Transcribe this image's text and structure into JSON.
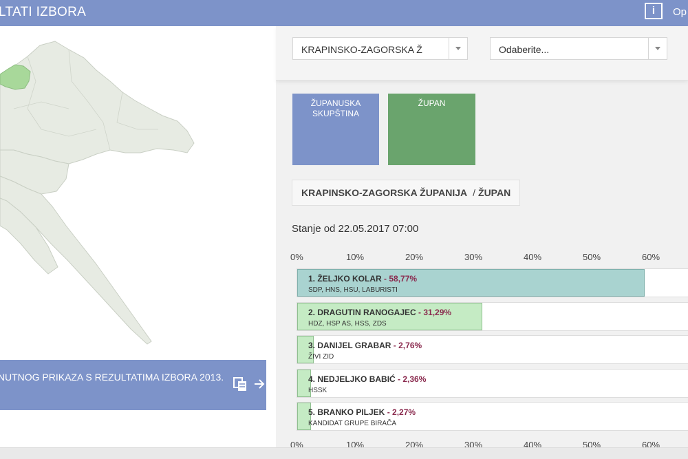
{
  "header": {
    "title": "LTATI IZBORA",
    "info_label": "i",
    "right_label": "Op"
  },
  "map": {
    "highlight_color": "#a8d89a",
    "region_color": "#e7ebe3"
  },
  "banner": {
    "text": "NUTNOG PRIKAZA S REZULTATIMA IZBORA 2013."
  },
  "filters": {
    "county": "KRAPINSKO-ZAGORSKA Ž",
    "municipality": "Odaberite..."
  },
  "tiles": [
    {
      "label": "ŽUPANUSKA SKUPŠTINA",
      "color": "#7d93c9"
    },
    {
      "label": "ŽUPAN",
      "color": "#6aa46d"
    }
  ],
  "breadcrumb": {
    "county": "KRAPINSKO-ZAGORSKA ŽUPANIJA",
    "separator": "/",
    "office": "ŽUPAN"
  },
  "status_text": "Stanje od 22.05.2017 07:00",
  "chart_data": {
    "type": "bar",
    "orientation": "horizontal",
    "axis_ticks": [
      "0%",
      "10%",
      "20%",
      "30%",
      "40%",
      "50%",
      "60%"
    ],
    "xlim": [
      0,
      66
    ],
    "candidates": [
      {
        "name": "1. ŽELJKO KOLAR",
        "pct_label": "58,77%",
        "value": 58.77,
        "party": "SDP, HNS, HSU, LABURISTI",
        "color": "#a9d3d0"
      },
      {
        "name": "2. DRAGUTIN RANOGAJEC",
        "pct_label": "31,29%",
        "value": 31.29,
        "party": "HDZ, HSP AS, HSS, ZDS",
        "color": "#c5ebc4"
      },
      {
        "name": "3. DANIJEL GRABAR",
        "pct_label": "2,76%",
        "value": 2.76,
        "party": "ŽIVI ZID",
        "color": "#c5ebc4"
      },
      {
        "name": "4. NEDJELJKO BABIĆ",
        "pct_label": "2,36%",
        "value": 2.36,
        "party": "HSSK",
        "color": "#c5ebc4"
      },
      {
        "name": "5. BRANKO PILJEK",
        "pct_label": "2,27%",
        "value": 2.27,
        "party": "KANDIDAT GRUPE BIRAČA",
        "color": "#c5ebc4"
      }
    ]
  }
}
